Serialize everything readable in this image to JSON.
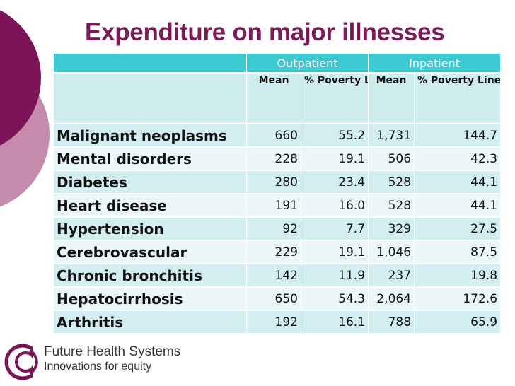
{
  "title": "Expenditure on major illnesses",
  "groups": {
    "outpatient": "Outpatient",
    "inpatient": "Inpatient"
  },
  "subheaders": {
    "outpatient_mean": "Mean",
    "outpatient_pct": "% Poverty Line",
    "inpatient_mean": "Mean",
    "inpatient_pct": "% Poverty Line"
  },
  "rows": [
    {
      "illness": "Malignant neoplasms",
      "out_mean": "660",
      "out_pct": "55.2",
      "in_mean": "1,731",
      "in_pct": "144.7"
    },
    {
      "illness": "Mental disorders",
      "out_mean": "228",
      "out_pct": "19.1",
      "in_mean": "506",
      "in_pct": "42.3"
    },
    {
      "illness": "Diabetes",
      "out_mean": "280",
      "out_pct": "23.4",
      "in_mean": "528",
      "in_pct": "44.1"
    },
    {
      "illness": "Heart disease",
      "out_mean": "191",
      "out_pct": "16.0",
      "in_mean": "528",
      "in_pct": "44.1"
    },
    {
      "illness": "Hypertension",
      "out_mean": "92",
      "out_pct": "7.7",
      "in_mean": "329",
      "in_pct": "27.5"
    },
    {
      "illness": "Cerebrovascular",
      "out_mean": "229",
      "out_pct": "19.1",
      "in_mean": "1,046",
      "in_pct": "87.5"
    },
    {
      "illness": "Chronic bronchitis",
      "out_mean": "142",
      "out_pct": "11.9",
      "in_mean": "237",
      "in_pct": "19.8"
    },
    {
      "illness": "Hepatocirrhosis",
      "out_mean": "650",
      "out_pct": "54.3",
      "in_mean": "2,064",
      "in_pct": "172.6"
    },
    {
      "illness": "Arthritis",
      "out_mean": "192",
      "out_pct": "16.1",
      "in_mean": "788",
      "in_pct": "65.9"
    }
  ],
  "footer": {
    "brand_name": "Future Health Systems",
    "tagline": "Innovations for equity"
  },
  "colors": {
    "title": "#7b1a57",
    "header": "#3cc9d1",
    "row_dark": "#d2eef0",
    "row_light": "#eaf6f7",
    "deco_dark": "#7d1458",
    "deco_light": "#c58aac"
  }
}
